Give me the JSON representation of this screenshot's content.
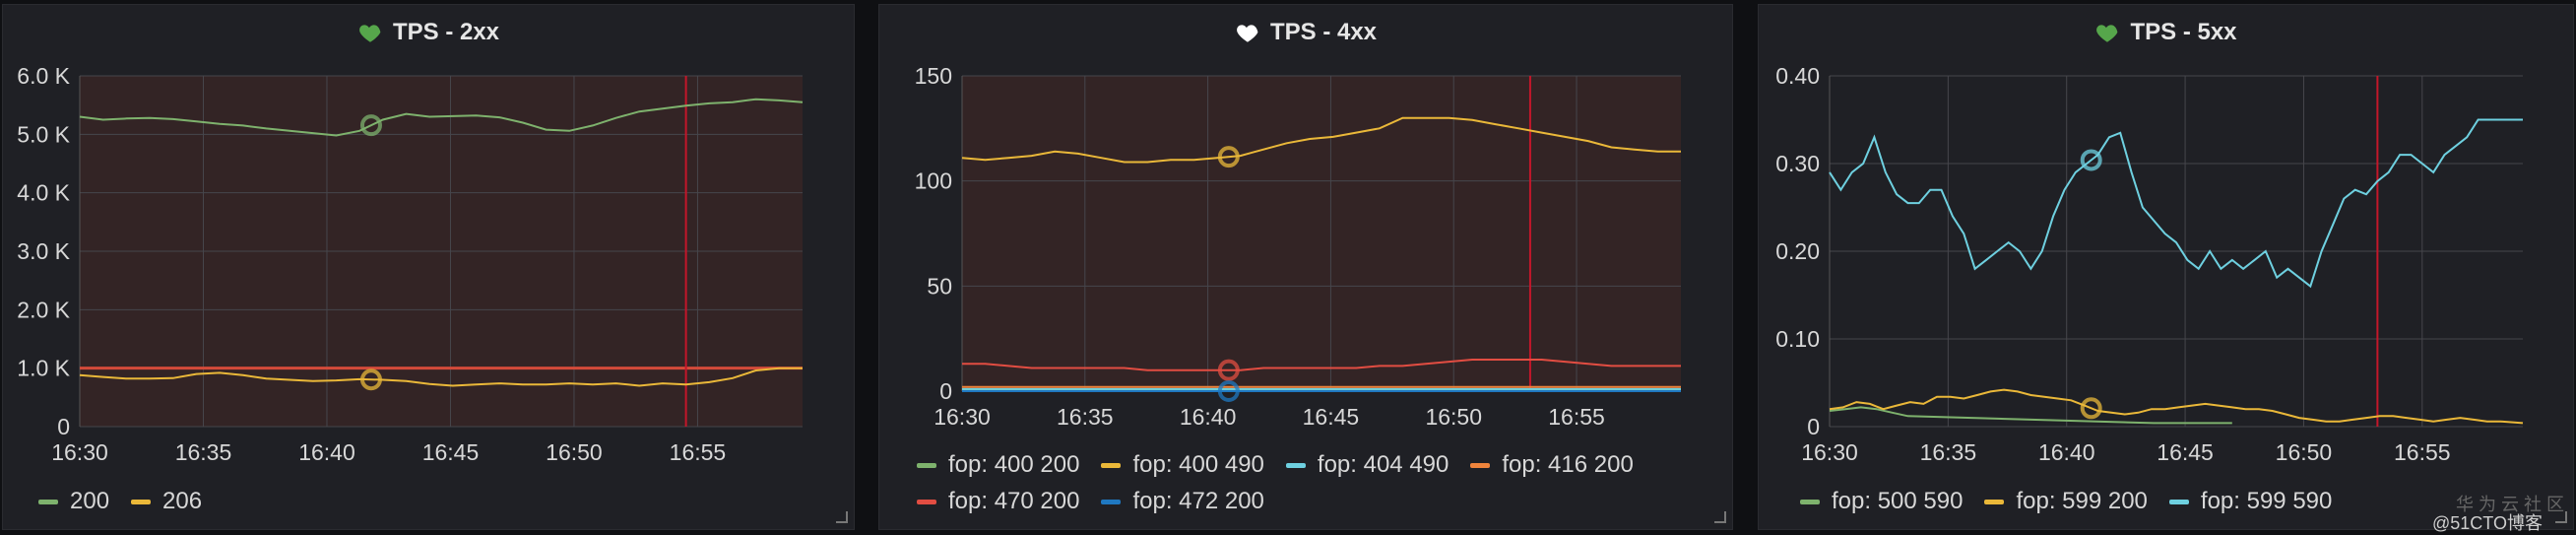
{
  "panels": [
    {
      "title": "TPS - 2xx",
      "heart_color": "#56a64b",
      "legend": [
        {
          "name": "200",
          "color": "#7eb26d"
        },
        {
          "name": "206",
          "color": "#eab839"
        }
      ],
      "chart_data": {
        "type": "line",
        "title": "TPS - 2xx",
        "x_ticks": [
          "16:30",
          "16:35",
          "16:40",
          "16:45",
          "16:50",
          "16:55"
        ],
        "y_ticks": [
          "0",
          "1.0 K",
          "2.0 K",
          "3.0 K",
          "4.0 K",
          "5.0 K",
          "6.0 K"
        ],
        "xlim": [
          0,
          31
        ],
        "ylim": [
          0,
          6000
        ],
        "threshold": 1000,
        "cursor_x": 26,
        "hover_x": 12.5,
        "series": [
          {
            "name": "200",
            "color": "#7eb26d",
            "x": [
              0,
              1,
              2,
              3,
              4,
              5,
              6,
              7,
              8,
              9,
              10,
              11,
              12,
              13,
              14,
              15,
              16,
              17,
              18,
              19,
              20,
              21,
              22,
              23,
              24,
              25,
              26,
              27,
              28,
              29,
              30,
              31
            ],
            "y": [
              5300,
              5250,
              5270,
              5280,
              5260,
              5220,
              5180,
              5150,
              5100,
              5060,
              5020,
              4980,
              5060,
              5250,
              5350,
              5300,
              5310,
              5320,
              5290,
              5200,
              5080,
              5060,
              5150,
              5280,
              5390,
              5440,
              5490,
              5530,
              5550,
              5600,
              5580,
              5550
            ]
          },
          {
            "name": "206",
            "color": "#eab839",
            "x": [
              0,
              1,
              2,
              3,
              4,
              5,
              6,
              7,
              8,
              9,
              10,
              11,
              12,
              13,
              14,
              15,
              16,
              17,
              18,
              19,
              20,
              21,
              22,
              23,
              24,
              25,
              26,
              27,
              28,
              29,
              30,
              31
            ],
            "y": [
              880,
              850,
              820,
              820,
              830,
              900,
              920,
              880,
              820,
              800,
              780,
              790,
              810,
              800,
              780,
              730,
              700,
              720,
              740,
              720,
              720,
              740,
              720,
              740,
              700,
              740,
              720,
              760,
              830,
              960,
              1000,
              1000
            ]
          }
        ]
      }
    },
    {
      "title": "TPS - 4xx",
      "heart_color": "#ffffff",
      "legend": [
        {
          "name": "fop: 400 200",
          "color": "#7eb26d"
        },
        {
          "name": "fop: 400 490",
          "color": "#eab839"
        },
        {
          "name": "fop: 404 490",
          "color": "#6ed0e0"
        },
        {
          "name": "fop: 416 200",
          "color": "#ef843c"
        },
        {
          "name": "fop: 470 200",
          "color": "#e24d42"
        },
        {
          "name": "fop: 472 200",
          "color": "#1f78c1"
        }
      ],
      "chart_data": {
        "type": "line",
        "title": "TPS - 4xx",
        "x_ticks": [
          "16:30",
          "16:35",
          "16:40",
          "16:45",
          "16:50",
          "16:55"
        ],
        "y_ticks": [
          "0",
          "50",
          "100",
          "150"
        ],
        "xlim": [
          0,
          31
        ],
        "ylim": [
          0,
          150
        ],
        "cursor_x": 24.5,
        "hover_x": 11.5,
        "series": [
          {
            "name": "fop: 400 200",
            "color": "#7eb26d",
            "x": [
              0,
              31
            ],
            "y": [
              0.5,
              0.5
            ]
          },
          {
            "name": "fop: 400 490",
            "color": "#eab839",
            "x": [
              0,
              1,
              2,
              3,
              4,
              5,
              6,
              7,
              8,
              9,
              10,
              11,
              12,
              13,
              14,
              15,
              16,
              17,
              18,
              19,
              20,
              21,
              22,
              23,
              24,
              25,
              26,
              27,
              28,
              29,
              30,
              31
            ],
            "y": [
              111,
              110,
              111,
              112,
              114,
              113,
              111,
              109,
              109,
              110,
              110,
              111,
              112,
              115,
              118,
              120,
              121,
              123,
              125,
              130,
              130,
              130,
              129,
              127,
              125,
              123,
              121,
              119,
              116,
              115,
              114,
              114
            ]
          },
          {
            "name": "fop: 404 490",
            "color": "#6ed0e0",
            "x": [
              0,
              31
            ],
            "y": [
              1,
              1
            ]
          },
          {
            "name": "fop: 416 200",
            "color": "#ef843c",
            "x": [
              0,
              31
            ],
            "y": [
              2,
              2
            ]
          },
          {
            "name": "fop: 470 200",
            "color": "#e24d42",
            "x": [
              0,
              1,
              2,
              3,
              4,
              5,
              6,
              7,
              8,
              9,
              10,
              11,
              12,
              13,
              14,
              15,
              16,
              17,
              18,
              19,
              20,
              21,
              22,
              23,
              24,
              25,
              26,
              27,
              28,
              29,
              30,
              31
            ],
            "y": [
              13,
              13,
              12,
              11,
              11,
              11,
              11,
              11,
              10,
              10,
              10,
              10,
              10,
              11,
              11,
              11,
              11,
              11,
              12,
              12,
              13,
              14,
              15,
              15,
              15,
              15,
              14,
              13,
              12,
              12,
              12,
              12
            ]
          },
          {
            "name": "fop: 472 200",
            "color": "#1f78c1",
            "x": [
              0,
              31
            ],
            "y": [
              0,
              0
            ]
          }
        ]
      }
    },
    {
      "title": "TPS - 5xx",
      "heart_color": "#56a64b",
      "legend": [
        {
          "name": "fop: 500 590",
          "color": "#7eb26d"
        },
        {
          "name": "fop: 599 200",
          "color": "#eab839"
        },
        {
          "name": "fop: 599 590",
          "color": "#6ed0e0"
        }
      ],
      "chart_data": {
        "type": "line",
        "title": "TPS - 5xx",
        "x_ticks": [
          "16:30",
          "16:35",
          "16:40",
          "16:45",
          "16:50",
          "16:55"
        ],
        "y_ticks": [
          "0",
          "0.10",
          "0.20",
          "0.30",
          "0.40"
        ],
        "xlim": [
          0,
          31
        ],
        "ylim": [
          0,
          0.4
        ],
        "cursor_x": 24.5,
        "hover_x": 11.7,
        "series": [
          {
            "name": "fop: 500 590",
            "color": "#7eb26d",
            "x": [
              0,
              0.7,
              1.4,
              2.1,
              2.8,
              3.5,
              14.5,
              18
            ],
            "y": [
              0.018,
              0.02,
              0.022,
              0.02,
              0.016,
              0.012,
              0.004,
              0.004
            ]
          },
          {
            "name": "fop: 599 200",
            "color": "#eab839",
            "x": [
              0,
              0.6,
              1.2,
              1.8,
              2.4,
              3,
              3.6,
              4.2,
              4.8,
              5.4,
              6,
              6.6,
              7.2,
              7.8,
              8.4,
              9,
              9.6,
              10.2,
              10.8,
              11.4,
              12,
              12.6,
              13.2,
              13.8,
              14.4,
              15,
              15.6,
              16.2,
              16.8,
              17.4,
              18,
              18.6,
              19.2,
              19.8,
              20.4,
              21,
              21.6,
              22.2,
              22.8,
              23.4,
              24,
              24.6,
              25.2,
              25.8,
              26.4,
              27,
              27.6,
              28.2,
              28.8,
              29.4,
              30,
              31
            ],
            "y": [
              0.02,
              0.022,
              0.028,
              0.026,
              0.02,
              0.024,
              0.028,
              0.026,
              0.034,
              0.034,
              0.032,
              0.036,
              0.04,
              0.042,
              0.04,
              0.036,
              0.034,
              0.032,
              0.03,
              0.024,
              0.018,
              0.016,
              0.014,
              0.016,
              0.02,
              0.02,
              0.022,
              0.024,
              0.026,
              0.024,
              0.022,
              0.02,
              0.02,
              0.018,
              0.014,
              0.01,
              0.008,
              0.006,
              0.006,
              0.008,
              0.01,
              0.012,
              0.012,
              0.01,
              0.008,
              0.006,
              0.008,
              0.01,
              0.008,
              0.006,
              0.006,
              0.004
            ]
          },
          {
            "name": "fop: 599 590",
            "color": "#6ed0e0",
            "x": [
              0,
              0.5,
              1,
              1.5,
              2,
              2.5,
              3,
              3.5,
              4,
              4.5,
              5,
              5.5,
              6,
              6.5,
              7,
              7.5,
              8,
              8.5,
              9,
              9.5,
              10,
              10.5,
              11,
              11.5,
              12,
              12.5,
              13,
              13.5,
              14,
              14.5,
              15,
              15.5,
              16,
              16.5,
              17,
              17.5,
              18,
              18.5,
              19,
              19.5,
              20,
              20.5,
              21,
              21.5,
              22,
              22.5,
              23,
              23.5,
              24,
              24.5,
              25,
              25.5,
              26,
              26.5,
              27,
              27.5,
              28,
              28.5,
              29,
              29.5,
              30,
              30.5,
              31
            ],
            "y": [
              0.29,
              0.27,
              0.29,
              0.3,
              0.33,
              0.29,
              0.265,
              0.255,
              0.255,
              0.27,
              0.27,
              0.24,
              0.22,
              0.18,
              0.19,
              0.2,
              0.21,
              0.2,
              0.18,
              0.2,
              0.24,
              0.27,
              0.29,
              0.3,
              0.31,
              0.33,
              0.335,
              0.29,
              0.25,
              0.235,
              0.22,
              0.21,
              0.19,
              0.18,
              0.2,
              0.18,
              0.19,
              0.18,
              0.19,
              0.2,
              0.17,
              0.18,
              0.17,
              0.16,
              0.2,
              0.23,
              0.26,
              0.27,
              0.265,
              0.28,
              0.29,
              0.31,
              0.31,
              0.3,
              0.29,
              0.31,
              0.32,
              0.33,
              0.35,
              0.35,
              0.35,
              0.35,
              0.35
            ]
          }
        ]
      }
    }
  ],
  "watermark": {
    "line1": "华 为 云 社 区",
    "line2": "@51CTO博客"
  }
}
